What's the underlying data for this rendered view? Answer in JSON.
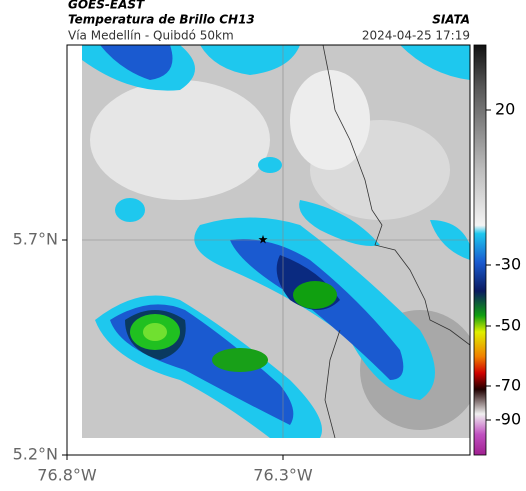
{
  "header": {
    "title": "GOES-EAST",
    "subtitle": "Temperatura de Brillo CH13",
    "location": "Vía Medellín - Quibdó 50km",
    "source": "SIATA",
    "timestamp": "2024-04-25 17:19"
  },
  "axes": {
    "lat_labels": [
      "5.7°N",
      "5.2°N"
    ],
    "lon_labels": [
      "76.8°W",
      "76.3°W"
    ]
  },
  "colorbar": {
    "ticks": [
      20,
      -30,
      -50,
      -70,
      -90
    ]
  }
}
